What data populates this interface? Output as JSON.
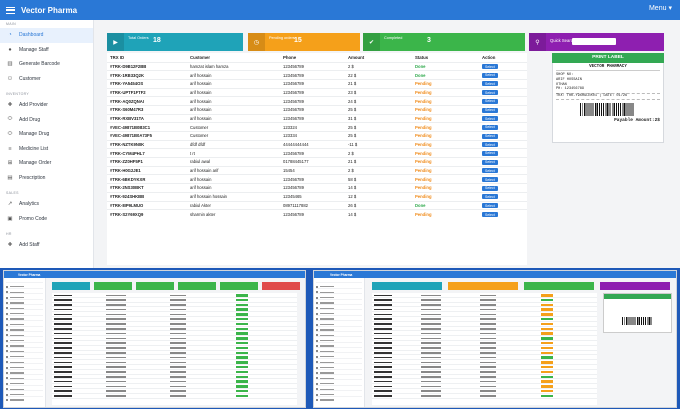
{
  "app": {
    "brand": "Vector Pharma",
    "menu_label": "Menu"
  },
  "sidebar": {
    "sections": [
      {
        "title": "MAIN",
        "items": [
          {
            "label": "Dashboard",
            "icon": "gauge-icon",
            "active": true
          },
          {
            "label": "Manage Staff",
            "icon": "user-icon"
          },
          {
            "label": "Generate Barcode",
            "icon": "barcode-icon"
          },
          {
            "label": "Customer",
            "icon": "users-icon"
          }
        ]
      },
      {
        "title": "INVENTORY",
        "items": [
          {
            "label": "Add Provider",
            "icon": "user-plus-icon"
          },
          {
            "label": "Add Drug",
            "icon": "pill-icon"
          },
          {
            "label": "Manage Drug",
            "icon": "pill-icon"
          },
          {
            "label": "Medicine List",
            "icon": "list-icon"
          },
          {
            "label": "Manage Order",
            "icon": "cart-icon"
          },
          {
            "label": "Prescription",
            "icon": "document-icon"
          }
        ]
      },
      {
        "title": "SALES",
        "items": [
          {
            "label": "Analytics",
            "icon": "chart-icon"
          },
          {
            "label": "Promo Code",
            "icon": "ticket-icon"
          }
        ]
      },
      {
        "title": "HR",
        "items": [
          {
            "label": "Add Staff",
            "icon": "user-plus-icon"
          }
        ]
      }
    ]
  },
  "stats": {
    "total_orders": {
      "label": "Total Orders",
      "value": "18",
      "color": "#1fa3b8"
    },
    "pending_orders": {
      "label": "Pending orders",
      "value": "15",
      "color": "#f5a01a"
    },
    "completed": {
      "label": "Completed",
      "value": "3",
      "color": "#3bb54a"
    },
    "quick_search": {
      "label": "Quick Search",
      "color": "#8e1fb0"
    }
  },
  "orders": {
    "columns": [
      "TRX ID",
      "Customer",
      "Phone",
      "Amount",
      "Status",
      "Action"
    ],
    "select_label": "Select",
    "rows": [
      {
        "id": "#TRK-D9B12F2BB",
        "customer": "hamzat islam hamza",
        "phone": "123456789",
        "amount": "2 $",
        "status": "Done"
      },
      {
        "id": "#TRK-1RB33Q2K",
        "customer": "arif hossain",
        "phone": "123456789",
        "amount": "22 $",
        "status": "Done"
      },
      {
        "id": "#TRK-YA5454OS",
        "customer": "arif hossain",
        "phone": "123456789",
        "amount": "21 $",
        "status": "Pending"
      },
      {
        "id": "#TRK-UPTF1FTF2",
        "customer": "arif hossain",
        "phone": "123456789",
        "amount": "23 $",
        "status": "Pending"
      },
      {
        "id": "#TRK-AQ0ZQNAI",
        "customer": "arif hossain",
        "phone": "123456789",
        "amount": "24 $",
        "status": "Pending"
      },
      {
        "id": "#TRK-S60M47R3",
        "customer": "arif hossain",
        "phone": "123456789",
        "amount": "25 $",
        "status": "Pending"
      },
      {
        "id": "#TRK-RXBV31TA",
        "customer": "arif hossain",
        "phone": "123456789",
        "amount": "31 $",
        "status": "Pending"
      },
      {
        "id": "#VEC-49871B0B3C1",
        "customer": "Customer",
        "phone": "123324",
        "amount": "25 $",
        "status": "Pending"
      },
      {
        "id": "#VEC-49871B0A73F5",
        "customer": "Customer",
        "phone": "123334",
        "amount": "25 $",
        "status": "Pending"
      },
      {
        "id": "#TRK-NZTK9N0K",
        "customer": "dfdf dfdf",
        "phone": "44444444444",
        "amount": "-11 $",
        "status": "Pending"
      },
      {
        "id": "#TRK-CYM4PHL7",
        "customer": "t rt",
        "phone": "123456789",
        "amount": "2 $",
        "status": "Pending"
      },
      {
        "id": "#TRK-ZZ0HF5P1",
        "customer": "rabiul awal",
        "phone": "01788445177",
        "amount": "21 $",
        "status": "Pending"
      },
      {
        "id": "#TRK-H0G2JE1",
        "customer": "arif hossain arif",
        "phone": "15454",
        "amount": "2 $",
        "status": "Pending"
      },
      {
        "id": "#TRK-6BKDYKXR",
        "customer": "arif hossain",
        "phone": "123456789",
        "amount": "58 $",
        "status": "Pending"
      },
      {
        "id": "#TRK-2NS30BKT",
        "customer": "arif hossain",
        "phone": "123456789",
        "amount": "14 $",
        "status": "Pending"
      },
      {
        "id": "#TRK-924SHKBB",
        "customer": "arif hossain hossain",
        "phone": "12345465",
        "amount": "12 $",
        "status": "Pending"
      },
      {
        "id": "#TRK-8IP9LMUO",
        "customer": "rabiul Akter",
        "phone": "08971117882",
        "amount": "26 $",
        "status": "Done"
      },
      {
        "id": "#TRK-S2Y69XQ9",
        "customer": "sharmin akter",
        "phone": "123456789",
        "amount": "14 $",
        "status": "Pending"
      }
    ]
  },
  "receipt": {
    "print_label": "PRINT LABEL",
    "title": "VECTOR PHARMACY",
    "lines": [
      "SHOP NO:",
      "ARIF HOSSAIN",
      "OTHAN",
      "PH: 123456789"
    ],
    "trx_line": "TRX: TRK-Y9XHGLEK01 | DATE: 01/26",
    "payable": "Payable Amount:2$"
  },
  "thumb1": {
    "brand": "Vector Pharma"
  },
  "thumb2": {
    "brand": "Vector Pharma"
  }
}
